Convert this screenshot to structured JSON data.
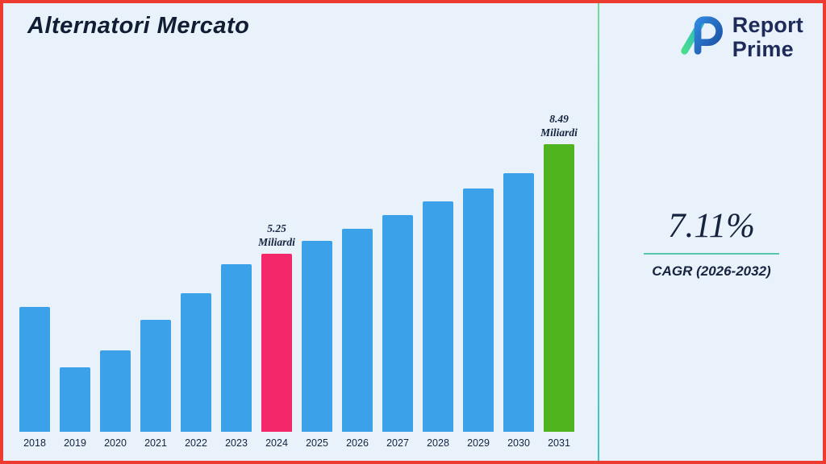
{
  "header": {
    "title": "Alternatori Mercato"
  },
  "brand": {
    "name_line1": "Report",
    "name_line2": "Prime",
    "logo_icon": "report-prime-logo"
  },
  "stats": {
    "cagr_value": "7.11%",
    "cagr_label": "CAGR (2026-2032)"
  },
  "colors": {
    "background": "#e9f1fa",
    "border": "#ee3b30",
    "divider_teal": "#4fc8b4",
    "navy_text": "#16233f",
    "bar_default": "#3ba1e8",
    "bar_highlight_pink": "#f5276b",
    "bar_highlight_green": "#4fb41e"
  },
  "chart_data": {
    "type": "bar",
    "title": "Alternatori Mercato",
    "unit": "Miliardi",
    "categories": [
      "2018",
      "2019",
      "2020",
      "2021",
      "2022",
      "2023",
      "2024",
      "2025",
      "2026",
      "2027",
      "2028",
      "2029",
      "2030",
      "2031"
    ],
    "values": [
      3.7,
      1.9,
      2.4,
      3.3,
      4.1,
      4.95,
      5.25,
      5.65,
      6.0,
      6.4,
      6.8,
      7.2,
      7.65,
      8.49
    ],
    "annotations": [
      {
        "category": "2024",
        "lines": [
          "5.25",
          "Miliardi"
        ]
      },
      {
        "category": "2031",
        "lines": [
          "8.49",
          "Miliardi"
        ]
      }
    ],
    "bar_colors": {
      "default": "#3ba1e8",
      "2024": "#f5276b",
      "2031": "#4fb41e"
    },
    "xlabel": "",
    "ylabel": "",
    "ylim": [
      0,
      9
    ],
    "grid": false,
    "legend": false
  }
}
